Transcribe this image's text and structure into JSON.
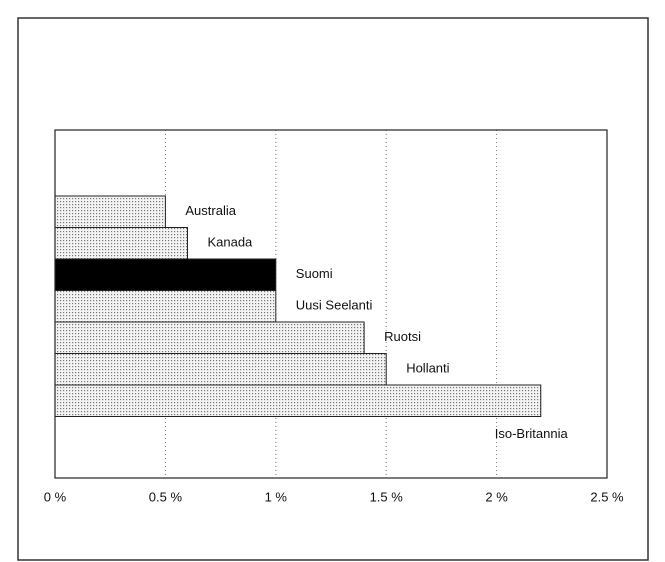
{
  "chart_data": {
    "type": "bar",
    "orientation": "horizontal",
    "categories": [
      "Australia",
      "Kanada",
      "Suomi",
      "Uusi Seelanti",
      "Ruotsi",
      "Hollanti",
      "Iso-Britannia"
    ],
    "values": [
      0.5,
      0.6,
      1.0,
      1.0,
      1.4,
      1.5,
      2.2
    ],
    "colors": [
      "#d9d9d9",
      "#d9d9d9",
      "#000000",
      "#d9d9d9",
      "#d9d9d9",
      "#d9d9d9",
      "#d9d9d9"
    ],
    "xlim": [
      0,
      2.5
    ],
    "xticks": [
      {
        "value": 0,
        "label": "0 %"
      },
      {
        "value": 0.5,
        "label": "0.5 %"
      },
      {
        "value": 1,
        "label": "1 %"
      },
      {
        "value": 1.5,
        "label": "1.5 %"
      },
      {
        "value": 2,
        "label": "2 %"
      },
      {
        "value": 2.5,
        "label": "2.5 %"
      }
    ],
    "grid": true
  }
}
